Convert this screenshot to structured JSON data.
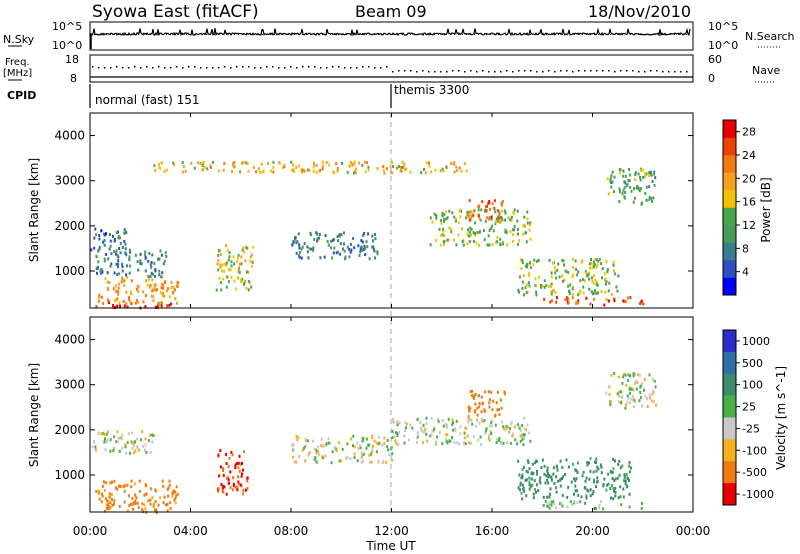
{
  "header": {
    "title": "Syowa East (fitACF)",
    "beam": "Beam 09",
    "date": "18/Nov/2010"
  },
  "nsky_panel": {
    "left_label": "N.Sky",
    "right_label": "N.Search",
    "tick_top": "10^5",
    "tick_bottom": "10^0"
  },
  "freq_panel": {
    "left_label_line1": "Freq.",
    "left_label_line2": "[MHz]",
    "right_label": "Nave",
    "left_tick_top": "18",
    "left_tick_bottom": "8",
    "right_tick_top": "60",
    "right_tick_bottom": "0"
  },
  "cpid_panel": {
    "label": "CPID",
    "mode1": "normal (fast) 151",
    "mode2": "themis 3300"
  },
  "axes": {
    "ylabel": "Slant Range [km]",
    "xlabel": "Time UT",
    "yticks": [
      "1000",
      "2000",
      "3000",
      "4000"
    ],
    "xticks": [
      "00:00",
      "04:00",
      "08:00",
      "12:00",
      "16:00",
      "20:00",
      "00:00"
    ]
  },
  "power_colorbar": {
    "label": "Power [dB]",
    "ticks": [
      "4",
      "8",
      "12",
      "16",
      "20",
      "24",
      "28"
    ],
    "colors": [
      "#0000ff",
      "#2e4fbf",
      "#3a7d8a",
      "#4a9a5a",
      "#4aa64a",
      "#f2c200",
      "#f5a020",
      "#f07a10",
      "#f04000",
      "#e80000"
    ]
  },
  "velocity_colorbar": {
    "label": "Velocity [m s^-1]",
    "ticks": [
      "1000",
      "500",
      "100",
      "25",
      "-25",
      "-100",
      "-500",
      "-1000"
    ],
    "colors": [
      "#2c2cc8",
      "#2f6fa8",
      "#3a8c6a",
      "#48b048",
      "#c8c8c8",
      "#f5b020",
      "#f07a10",
      "#e80000"
    ]
  },
  "chart_data": [
    {
      "type": "heatmap",
      "name": "Power",
      "x": [
        "00:00",
        "04:00",
        "08:00",
        "12:00",
        "16:00",
        "20:00",
        "00:00"
      ],
      "ylim": [
        180,
        4500
      ],
      "clim": [
        0,
        30
      ],
      "regions": [
        {
          "t0": 0.2,
          "t1": 3.2,
          "r0": 200,
          "r1": 350,
          "v": 28
        },
        {
          "t0": 0.3,
          "t1": 3.5,
          "r0": 300,
          "r1": 900,
          "v": 20
        },
        {
          "t0": 0.2,
          "t1": 3.0,
          "r0": 900,
          "r1": 1500,
          "v": 8
        },
        {
          "t0": 0.0,
          "t1": 1.5,
          "r0": 1500,
          "r1": 2000,
          "v": 6
        },
        {
          "t0": 5.0,
          "t1": 6.5,
          "r0": 600,
          "r1": 1600,
          "v": 16
        },
        {
          "t0": 8.0,
          "t1": 11.5,
          "r0": 1300,
          "r1": 1900,
          "v": 8
        },
        {
          "t0": 13.5,
          "t1": 17.5,
          "r0": 1600,
          "r1": 2400,
          "v": 14
        },
        {
          "t0": 15.0,
          "t1": 16.5,
          "r0": 2100,
          "r1": 2600,
          "v": 24
        },
        {
          "t0": 17.0,
          "t1": 21.0,
          "r0": 500,
          "r1": 1300,
          "v": 14
        },
        {
          "t0": 18.0,
          "t1": 22.0,
          "r0": 280,
          "r1": 450,
          "v": 24
        },
        {
          "t0": 20.5,
          "t1": 22.5,
          "r0": 2500,
          "r1": 3300,
          "v": 12
        },
        {
          "t0": 2.5,
          "t1": 15.0,
          "r0": 3200,
          "r1": 3450,
          "v": 18
        }
      ]
    },
    {
      "type": "heatmap",
      "name": "Velocity",
      "x": [
        "00:00",
        "04:00",
        "08:00",
        "12:00",
        "16:00",
        "20:00",
        "00:00"
      ],
      "ylim": [
        180,
        4500
      ],
      "clim": [
        -1000,
        1000
      ],
      "regions": [
        {
          "t0": 0.2,
          "t1": 3.5,
          "r0": 200,
          "r1": 900,
          "v": -150
        },
        {
          "t0": 0.0,
          "t1": 2.5,
          "r0": 1500,
          "r1": 2000,
          "v": 0
        },
        {
          "t0": 5.0,
          "t1": 6.3,
          "r0": 600,
          "r1": 1600,
          "v": -500
        },
        {
          "t0": 8.0,
          "t1": 12.0,
          "r0": 1300,
          "r1": 1900,
          "v": 0
        },
        {
          "t0": 12.0,
          "t1": 17.5,
          "r0": 1700,
          "r1": 2300,
          "v": 10
        },
        {
          "t0": 15.0,
          "t1": 16.5,
          "r0": 2300,
          "r1": 2900,
          "v": -400
        },
        {
          "t0": 17.0,
          "t1": 21.5,
          "r0": 500,
          "r1": 1400,
          "v": 150
        },
        {
          "t0": 18.0,
          "t1": 22.0,
          "r0": 280,
          "r1": 450,
          "v": 50
        },
        {
          "t0": 20.5,
          "t1": 22.5,
          "r0": 2500,
          "r1": 3300,
          "v": 5
        }
      ]
    }
  ]
}
